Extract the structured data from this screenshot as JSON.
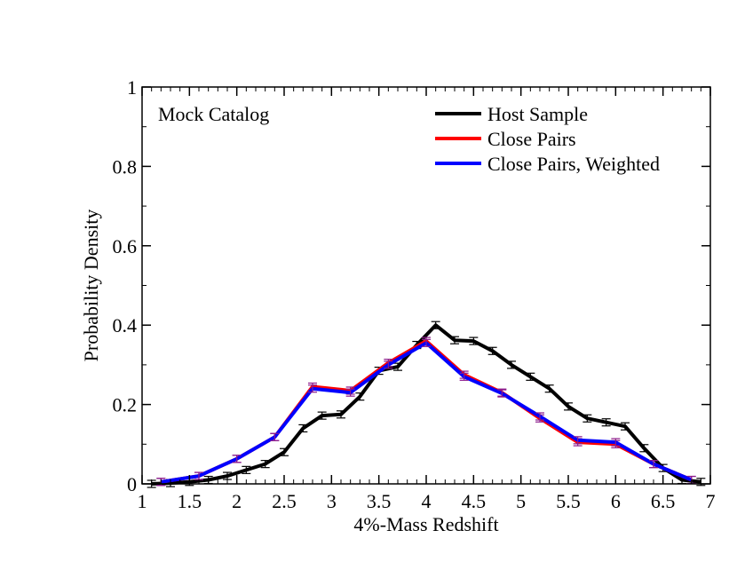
{
  "chart_data": {
    "type": "line",
    "xlabel": "4%-Mass Redshift",
    "ylabel": "Probability Density",
    "xlim": [
      1,
      7
    ],
    "ylim": [
      0,
      1
    ],
    "grid": false,
    "legend_position": "top-right",
    "annotation": "Mock Catalog",
    "x_ticks": [
      "1",
      "1.5",
      "2",
      "2.5",
      "3",
      "3.5",
      "4",
      "4.5",
      "5",
      "5.5",
      "6",
      "6.5",
      "7"
    ],
    "y_ticks": [
      "0",
      "0.2",
      "0.4",
      "0.6",
      "0.8",
      "1"
    ],
    "series": [
      {
        "name": "Host Sample",
        "color": "#000000",
        "x": [
          1.1,
          1.3,
          1.5,
          1.7,
          1.9,
          2.1,
          2.3,
          2.5,
          2.7,
          2.9,
          3.1,
          3.3,
          3.5,
          3.7,
          3.9,
          4.1,
          4.3,
          4.5,
          4.7,
          4.9,
          5.1,
          5.3,
          5.5,
          5.7,
          5.9,
          6.1,
          6.3,
          6.5,
          6.7,
          6.9
        ],
        "y": [
          0.0,
          0.002,
          0.005,
          0.01,
          0.02,
          0.035,
          0.05,
          0.08,
          0.14,
          0.172,
          0.175,
          0.22,
          0.285,
          0.295,
          0.35,
          0.4,
          0.362,
          0.36,
          0.335,
          0.3,
          0.27,
          0.24,
          0.195,
          0.165,
          0.155,
          0.145,
          0.09,
          0.04,
          0.01,
          0.005
        ]
      },
      {
        "name": "Close Pairs",
        "color": "#ff0000",
        "x": [
          1.2,
          1.6,
          2.0,
          2.4,
          2.8,
          3.2,
          3.6,
          4.0,
          4.4,
          4.8,
          5.2,
          5.6,
          6.0,
          6.4,
          6.8
        ],
        "y": [
          0.005,
          0.02,
          0.063,
          0.118,
          0.245,
          0.235,
          0.305,
          0.36,
          0.275,
          0.23,
          0.165,
          0.105,
          0.1,
          0.05,
          0.01
        ]
      },
      {
        "name": "Close Pairs, Weighted",
        "color": "#0000ff",
        "x": [
          1.2,
          1.6,
          2.0,
          2.4,
          2.8,
          3.2,
          3.6,
          4.0,
          4.4,
          4.8,
          5.2,
          5.6,
          6.0,
          6.4,
          6.8
        ],
        "y": [
          0.005,
          0.02,
          0.063,
          0.118,
          0.24,
          0.23,
          0.3,
          0.355,
          0.27,
          0.228,
          0.17,
          0.11,
          0.105,
          0.05,
          0.01
        ]
      }
    ]
  }
}
